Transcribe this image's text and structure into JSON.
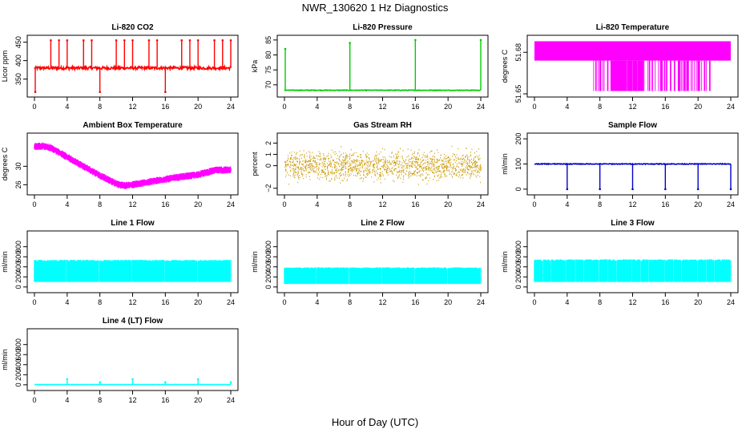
{
  "figure": {
    "title": "NWR_130620  1 Hz Diagnostics",
    "xlabel": "Hour of Day (UTC)"
  },
  "chart_data": [
    {
      "type": "line",
      "title": "Li-820 CO2",
      "ylabel": "Licor ppm",
      "color": "#ff0000",
      "xlim": [
        0,
        24
      ],
      "xticks": [
        0,
        4,
        8,
        12,
        16,
        20,
        24
      ],
      "ylim": [
        310,
        460
      ],
      "yticks": [
        350,
        400,
        450
      ],
      "baseline": 380,
      "noise": 4,
      "spikes": [
        {
          "x": 0.1,
          "y": 315
        },
        {
          "x": 2.0,
          "y": 455
        },
        {
          "x": 3.0,
          "y": 455
        },
        {
          "x": 4.0,
          "y": 455
        },
        {
          "x": 6.0,
          "y": 455
        },
        {
          "x": 7.0,
          "y": 455
        },
        {
          "x": 8.0,
          "y": 315
        },
        {
          "x": 10.0,
          "y": 455
        },
        {
          "x": 11.0,
          "y": 455
        },
        {
          "x": 12.0,
          "y": 455
        },
        {
          "x": 14.0,
          "y": 455
        },
        {
          "x": 15.0,
          "y": 455
        },
        {
          "x": 16.0,
          "y": 315
        },
        {
          "x": 18.0,
          "y": 455
        },
        {
          "x": 19.0,
          "y": 455
        },
        {
          "x": 20.0,
          "y": 455
        },
        {
          "x": 22.0,
          "y": 455
        },
        {
          "x": 23.0,
          "y": 455
        },
        {
          "x": 24.0,
          "y": 455
        }
      ]
    },
    {
      "type": "line",
      "title": "Li-820 Pressure",
      "ylabel": "kPa",
      "color": "#00cc00",
      "xlim": [
        0,
        24
      ],
      "xticks": [
        0,
        4,
        8,
        12,
        16,
        20,
        24
      ],
      "ylim": [
        67,
        85.5
      ],
      "yticks": [
        70,
        75,
        80,
        85
      ],
      "baseline": 68.2,
      "noise": 0.1,
      "spikes": [
        {
          "x": 0.1,
          "y": 82
        },
        {
          "x": 8.0,
          "y": 84
        },
        {
          "x": 16.0,
          "y": 85
        },
        {
          "x": 24.0,
          "y": 85
        }
      ]
    },
    {
      "type": "band",
      "title": "Li-820 Temperature",
      "ylabel": "degrees C",
      "color": "#ff00ff",
      "xlim": [
        0,
        24
      ],
      "xticks": [
        0,
        4,
        8,
        12,
        16,
        20,
        24
      ],
      "ylim": [
        51.65,
        51.69
      ],
      "yticks": [
        51.65,
        51.68
      ],
      "upper": 51.688,
      "lower": 51.674,
      "drop": 51.652,
      "dense_drops": [
        [
          9.3,
          13.3
        ]
      ],
      "sparse_drops": [
        [
          7.0,
          21.5
        ]
      ]
    },
    {
      "type": "band",
      "title": "Ambient Box Temperature",
      "ylabel": "degrees C",
      "color": "#ff00ff",
      "xlim": [
        0,
        24
      ],
      "xticks": [
        0,
        4,
        8,
        12,
        16,
        20,
        24
      ],
      "ylim": [
        24.5,
        36.5
      ],
      "yticks": [
        26,
        30
      ],
      "curve_x": [
        0,
        1,
        2,
        4,
        6,
        8,
        10,
        11,
        12,
        14,
        16,
        18,
        20,
        22,
        24
      ],
      "curve_y": [
        34.3,
        34.4,
        34.0,
        32.0,
        30.0,
        28.0,
        26.2,
        25.8,
        26.0,
        26.6,
        27.2,
        27.7,
        28.2,
        29.1,
        29.3
      ],
      "half_width": 0.8
    },
    {
      "type": "scatter",
      "title": "Gas Stream RH",
      "ylabel": "percent",
      "color": "#cc9900",
      "xlim": [
        0,
        24
      ],
      "xticks": [
        0,
        4,
        8,
        12,
        16,
        20,
        24
      ],
      "ylim": [
        -2.3,
        2.6
      ],
      "yticks": [
        -2,
        0,
        1,
        2
      ],
      "center": 0.0,
      "spread": 1.3
    },
    {
      "type": "line",
      "title": "Sample Flow",
      "ylabel": "ml/min",
      "color": "#0000cc",
      "xlim": [
        0,
        24
      ],
      "xticks": [
        0,
        4,
        8,
        12,
        16,
        20,
        24
      ],
      "ylim": [
        -10,
        210
      ],
      "yticks": [
        0,
        100,
        200
      ],
      "baseline": 100,
      "noise": 1.5,
      "spikes": [
        {
          "x": 4.0,
          "y": 0
        },
        {
          "x": 8.0,
          "y": 0
        },
        {
          "x": 12.0,
          "y": 0
        },
        {
          "x": 16.0,
          "y": 0
        },
        {
          "x": 20.0,
          "y": 0
        },
        {
          "x": 24.0,
          "y": 0
        }
      ]
    },
    {
      "type": "band",
      "title": "Line 1 Flow",
      "ylabel": "ml/min",
      "color": "#00ffff",
      "xlim": [
        0,
        24
      ],
      "xticks": [
        0,
        4,
        8,
        12,
        16,
        20,
        24
      ],
      "ylim": [
        -50,
        1050
      ],
      "yticks": [
        0,
        200,
        400,
        600,
        800
      ],
      "upper": 540,
      "lower": 100,
      "gaps": [
        3.9,
        7.9,
        11.9,
        15.9,
        19.9,
        23.9
      ]
    },
    {
      "type": "band",
      "title": "Line 2 Flow",
      "ylabel": "ml/min",
      "color": "#00ffff",
      "xlim": [
        0,
        24
      ],
      "xticks": [
        0,
        4,
        8,
        12,
        16,
        20,
        24
      ],
      "ylim": [
        -50,
        1050
      ],
      "yticks": [
        0,
        200,
        400,
        600,
        800
      ],
      "upper": 390,
      "lower": 60,
      "gaps": [
        3.9,
        7.9,
        11.9,
        15.9,
        19.9,
        23.9
      ]
    },
    {
      "type": "band",
      "title": "Line 3 Flow",
      "ylabel": "ml/min",
      "color": "#00ffff",
      "xlim": [
        0,
        24
      ],
      "xticks": [
        0,
        4,
        8,
        12,
        16,
        20,
        24
      ],
      "ylim": [
        -50,
        1050
      ],
      "yticks": [
        0,
        200,
        400,
        600,
        800
      ],
      "upper": 550,
      "lower": 100,
      "gaps": [
        1.0,
        2.0,
        3.9,
        5.0,
        6.0,
        7.9,
        9.0,
        10.0,
        11.9,
        13.0,
        14.0,
        15.9,
        17.0,
        18.0,
        19.9,
        21.0,
        22.0,
        23.9
      ]
    },
    {
      "type": "line",
      "title": "Line 4 (LT) Flow",
      "ylabel": "ml/min",
      "color": "#00ffff",
      "xlim": [
        0,
        24
      ],
      "xticks": [
        0,
        4,
        8,
        12,
        16,
        20,
        24
      ],
      "ylim": [
        -50,
        1050
      ],
      "yticks": [
        0,
        200,
        400,
        600,
        800
      ],
      "baseline": 5,
      "noise": 1,
      "spikes": [
        {
          "x": 4.0,
          "y": 110
        },
        {
          "x": 8.0,
          "y": 50
        },
        {
          "x": 12.0,
          "y": 110
        },
        {
          "x": 16.0,
          "y": 50
        },
        {
          "x": 20.0,
          "y": 110
        },
        {
          "x": 24.0,
          "y": 50
        }
      ]
    }
  ]
}
